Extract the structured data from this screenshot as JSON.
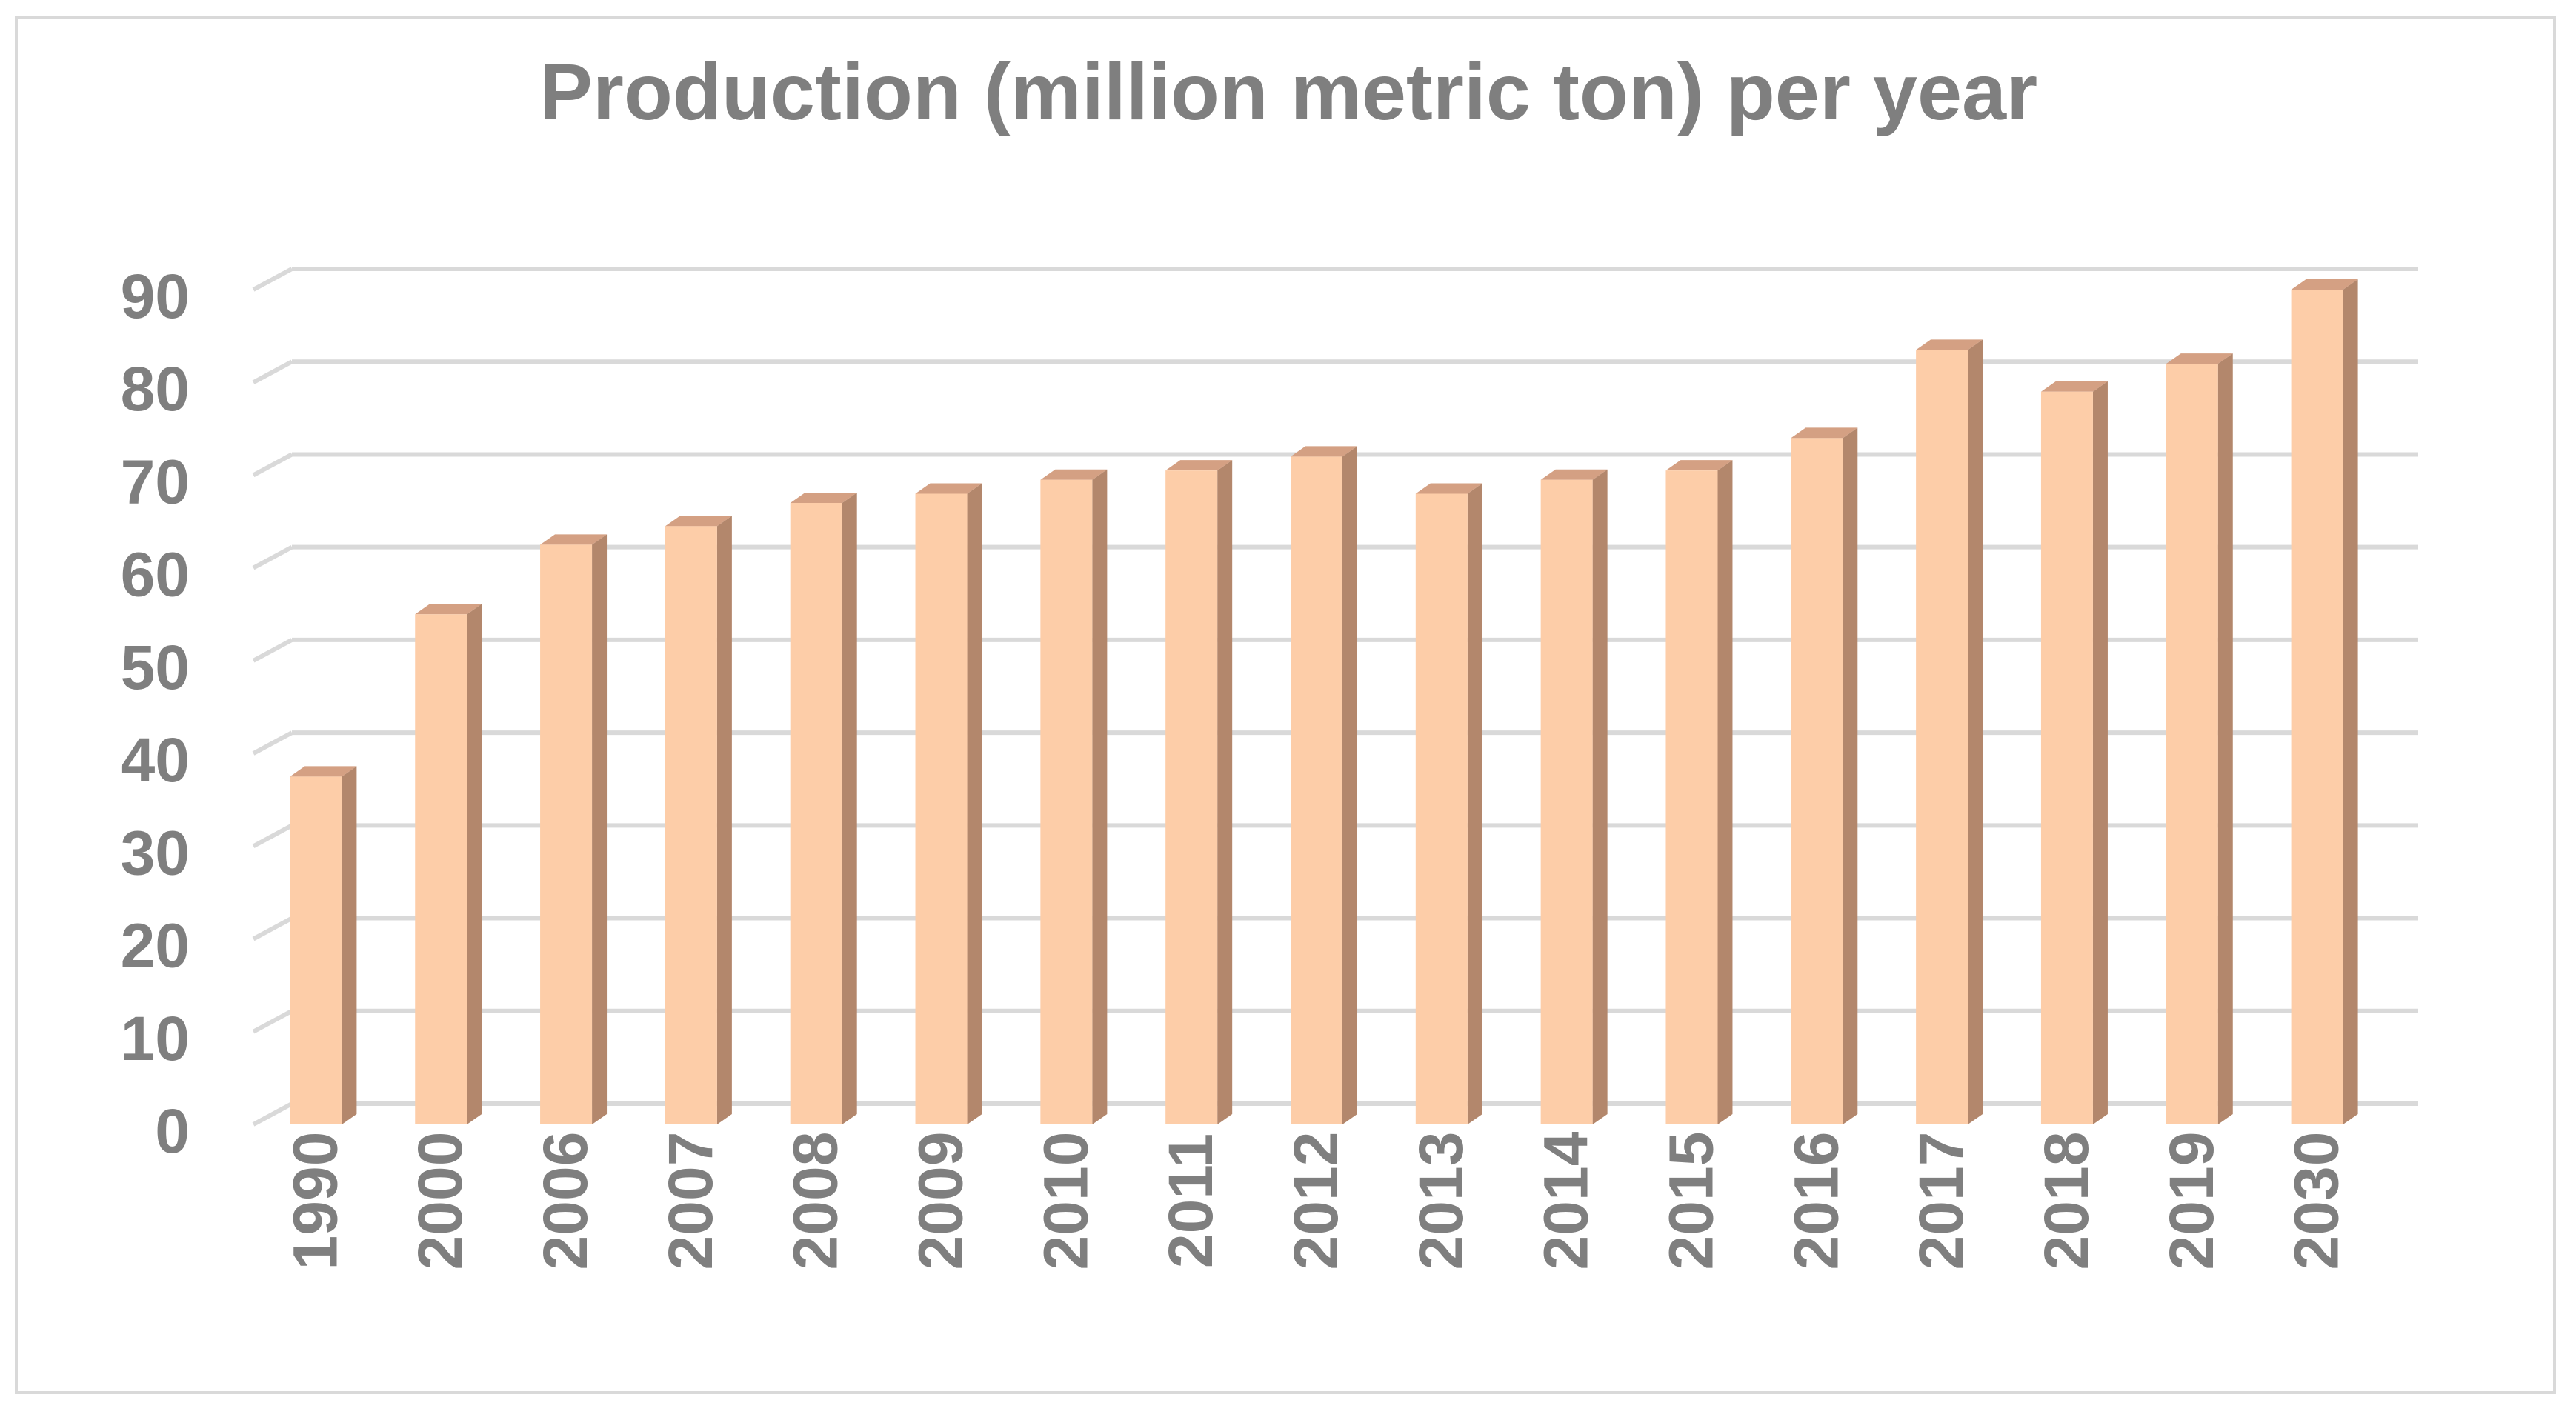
{
  "chart_data": {
    "type": "bar",
    "style": "3d-column",
    "title": "Production (million metric ton) per year",
    "xlabel": "",
    "ylabel": "",
    "categories": [
      "1990",
      "2000",
      "2006",
      "2007",
      "2008",
      "2009",
      "2010",
      "2011",
      "2012",
      "2013",
      "2014",
      "2015",
      "2016",
      "2017",
      "2018",
      "2019",
      "2030"
    ],
    "series": [
      {
        "name": "Production (million metric ton)",
        "values": [
          37.5,
          55,
          62.5,
          64.5,
          67,
          68,
          69.5,
          70.5,
          72,
          68,
          69.5,
          70.5,
          74,
          83.5,
          79,
          82,
          90
        ]
      }
    ],
    "yticks": [
      "0",
      "10",
      "20",
      "30",
      "40",
      "50",
      "60",
      "70",
      "80",
      "90"
    ],
    "ylim": [
      0,
      90
    ],
    "grid": true,
    "legend": "none",
    "colors": {
      "front": "#fdcda8",
      "side": "#b3876c",
      "top": "#d4a083",
      "grid": "#d9d9d9",
      "text": "#7f7f7f"
    }
  }
}
